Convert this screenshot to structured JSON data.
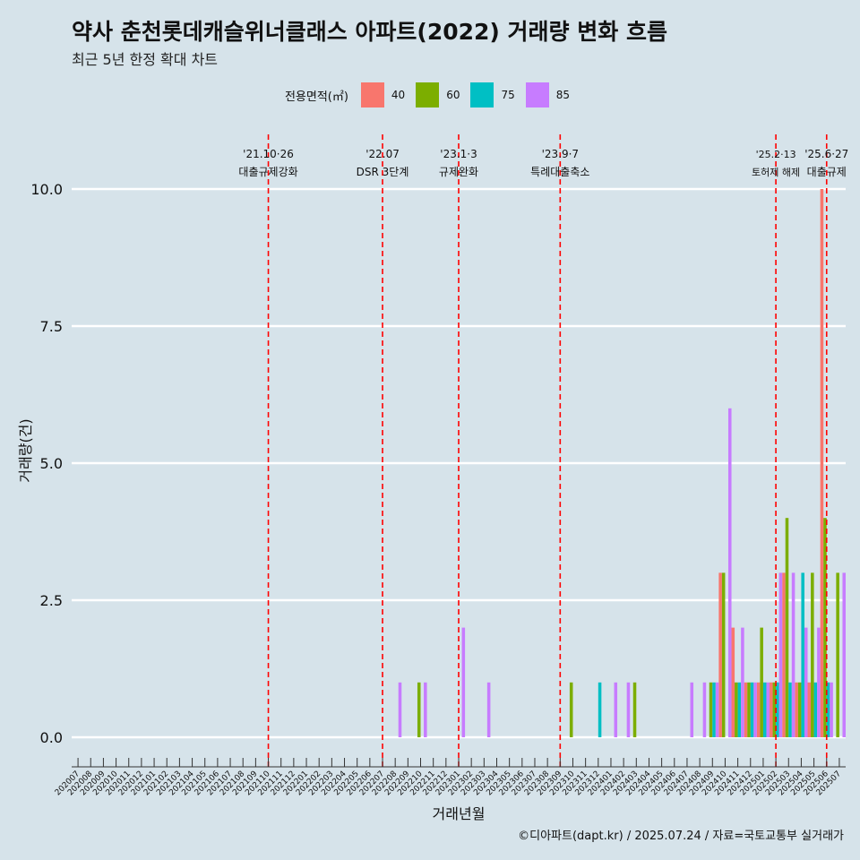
{
  "title": "약사 춘천롯데캐슬위너클래스 아파트(2022) 거래량 변화 흐름",
  "subtitle": "최근 5년 한정 확대 차트",
  "legend": {
    "title": "전용면적(㎡)",
    "items": [
      {
        "label": "40",
        "color": "#f8766d"
      },
      {
        "label": "60",
        "color": "#7cae00"
      },
      {
        "label": "75",
        "color": "#00bfc4"
      },
      {
        "label": "85",
        "color": "#c77cff"
      }
    ]
  },
  "caption": "©디아파트(dapt.kr) / 2025.07.24 / 자료=국토교통부 실거래가",
  "chart_data": {
    "type": "bar",
    "xlabel": "거래년월",
    "ylabel": "거래량(건)",
    "ylim": [
      0,
      10
    ],
    "yticks": [
      "0.0",
      "2.5",
      "5.0",
      "7.5",
      "10.0"
    ],
    "categories": [
      "202007",
      "202008",
      "202009",
      "202010",
      "202011",
      "202012",
      "202101",
      "202102",
      "202103",
      "202104",
      "202105",
      "202106",
      "202107",
      "202108",
      "202109",
      "202110",
      "202111",
      "202112",
      "202201",
      "202202",
      "202203",
      "202204",
      "202205",
      "202206",
      "202207",
      "202208",
      "202209",
      "202210",
      "202211",
      "202212",
      "202301",
      "202302",
      "202303",
      "202304",
      "202305",
      "202306",
      "202307",
      "202308",
      "202309",
      "202310",
      "202311",
      "202312",
      "202401",
      "202402",
      "202403",
      "202404",
      "202405",
      "202406",
      "202407",
      "202408",
      "202409",
      "202410",
      "202411",
      "202412",
      "202501",
      "202502",
      "202503",
      "202504",
      "202505",
      "202506",
      "202507"
    ],
    "series": [
      {
        "name": "40",
        "values": [
          0,
          0,
          0,
          0,
          0,
          0,
          0,
          0,
          0,
          0,
          0,
          0,
          0,
          0,
          0,
          0,
          0,
          0,
          0,
          0,
          0,
          0,
          0,
          0,
          0,
          0,
          0,
          0,
          0,
          0,
          0,
          0,
          0,
          0,
          0,
          0,
          0,
          0,
          0,
          0,
          0,
          0,
          0,
          0,
          0,
          0,
          0,
          0,
          0,
          0,
          0,
          3,
          2,
          1,
          1,
          1,
          3,
          1,
          1,
          10,
          0
        ]
      },
      {
        "name": "60",
        "values": [
          0,
          0,
          0,
          0,
          0,
          0,
          0,
          0,
          0,
          0,
          0,
          0,
          0,
          0,
          0,
          0,
          0,
          0,
          0,
          0,
          0,
          0,
          0,
          0,
          0,
          0,
          0,
          1,
          0,
          0,
          0,
          0,
          0,
          0,
          0,
          0,
          0,
          0,
          0,
          1,
          0,
          0,
          0,
          0,
          1,
          0,
          0,
          0,
          0,
          0,
          1,
          3,
          1,
          1,
          2,
          1,
          4,
          1,
          3,
          4,
          3
        ]
      },
      {
        "name": "75",
        "values": [
          0,
          0,
          0,
          0,
          0,
          0,
          0,
          0,
          0,
          0,
          0,
          0,
          0,
          0,
          0,
          0,
          0,
          0,
          0,
          0,
          0,
          0,
          0,
          0,
          0,
          0,
          0,
          0,
          0,
          0,
          0,
          0,
          0,
          0,
          0,
          0,
          0,
          0,
          0,
          0,
          0,
          1,
          0,
          0,
          0,
          0,
          0,
          0,
          0,
          0,
          1,
          0,
          1,
          1,
          1,
          1,
          1,
          3,
          1,
          1,
          0
        ]
      },
      {
        "name": "85",
        "values": [
          0,
          0,
          0,
          0,
          0,
          0,
          0,
          0,
          0,
          0,
          0,
          0,
          0,
          0,
          0,
          0,
          0,
          0,
          0,
          0,
          0,
          0,
          0,
          0,
          0,
          1,
          0,
          1,
          0,
          0,
          2,
          0,
          1,
          0,
          0,
          0,
          0,
          0,
          0,
          0,
          0,
          0,
          1,
          1,
          0,
          0,
          0,
          0,
          1,
          1,
          1,
          6,
          2,
          1,
          1,
          3,
          3,
          2,
          2,
          1,
          3
        ]
      }
    ],
    "events": [
      {
        "category": "202110",
        "date": "'21.10·26",
        "label": "대출규제강화"
      },
      {
        "category": "202207",
        "date": "'22.07",
        "label": "DSR 3단계"
      },
      {
        "category": "202301",
        "date": "'23.1·3",
        "label": "규제완화"
      },
      {
        "category": "202309",
        "date": "'23.9·7",
        "label": "특례대출축소"
      },
      {
        "category": "202502",
        "date": "'25.2·13",
        "label": "토허제 해제"
      },
      {
        "category": "202506",
        "date": "'25.6·27",
        "label": "대출규제"
      }
    ]
  }
}
